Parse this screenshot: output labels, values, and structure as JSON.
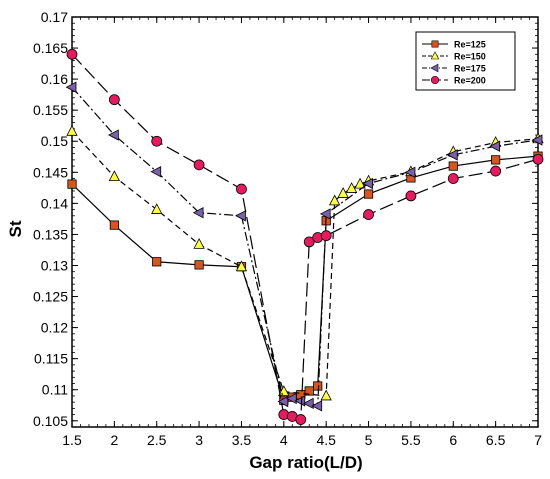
{
  "chart_data": {
    "type": "line",
    "title": "",
    "xlabel": "Gap ratio(L/D)",
    "ylabel": "St",
    "xlim": [
      1.5,
      7
    ],
    "ylim": [
      0.104,
      0.17
    ],
    "xticks": [
      1.5,
      2,
      2.5,
      3,
      3.5,
      4,
      4.5,
      5,
      5.5,
      6,
      6.5,
      7
    ],
    "xtick_labels": [
      "1.5",
      "2",
      "2.5",
      "3",
      "3.5",
      "4",
      "4.5",
      "5",
      "5.5",
      "6",
      "6.5",
      "7"
    ],
    "yticks": [
      0.105,
      0.11,
      0.115,
      0.12,
      0.125,
      0.13,
      0.135,
      0.14,
      0.145,
      0.15,
      0.155,
      0.16,
      0.165,
      0.17
    ],
    "ytick_labels": [
      "0.105",
      "0.11",
      "0.115",
      "0.12",
      "0.125",
      "0.13",
      "0.135",
      "0.14",
      "0.145",
      "0.15",
      "0.155",
      "0.16",
      "0.165",
      "0.17"
    ],
    "grid": false,
    "legend_position": "top-right",
    "series": [
      {
        "name": "Re=125",
        "line_style": "solid",
        "marker": "square",
        "color": "#d9541e",
        "x": [
          1.5,
          2.0,
          2.5,
          3.0,
          3.5,
          4.0,
          4.1,
          4.2,
          4.3,
          4.4,
          4.5,
          5.0,
          5.5,
          6.0,
          6.5,
          7.0
        ],
        "y": [
          0.1431,
          0.1365,
          0.1306,
          0.1301,
          0.1298,
          0.1083,
          0.1088,
          0.1092,
          0.1098,
          0.1106,
          0.1372,
          0.1415,
          0.1441,
          0.146,
          0.147,
          0.1476
        ]
      },
      {
        "name": "Re=150",
        "line_style": "dashed",
        "marker": "triangle",
        "color": "#ffff40",
        "x": [
          1.5,
          2.0,
          2.5,
          3.0,
          3.5,
          4.0,
          4.5,
          4.6,
          4.7,
          4.8,
          4.9,
          5.0,
          5.5,
          6.0,
          6.5,
          7.0
        ],
        "y": [
          0.1516,
          0.1443,
          0.139,
          0.1334,
          0.1298,
          0.1097,
          0.109,
          0.1404,
          0.1416,
          0.1424,
          0.1431,
          0.1436,
          0.1451,
          0.1483,
          0.1498,
          0.1504
        ]
      },
      {
        "name": "Re=175",
        "line_style": "dashdot",
        "marker": "triangle-left",
        "color": "#7a5faa",
        "x": [
          1.5,
          2.0,
          2.5,
          3.0,
          3.5,
          4.0,
          4.1,
          4.2,
          4.3,
          4.4,
          4.5,
          5.0,
          5.5,
          6.0,
          6.5,
          7.0
        ],
        "y": [
          0.1587,
          0.151,
          0.1451,
          0.1385,
          0.138,
          0.1081,
          0.1086,
          0.1082,
          0.1078,
          0.1074,
          0.1383,
          0.1432,
          0.145,
          0.1478,
          0.1492,
          0.1502
        ]
      },
      {
        "name": "Re=200",
        "line_style": "longdash",
        "marker": "circle",
        "color": "#e8195e",
        "x": [
          1.5,
          2.0,
          2.5,
          3.0,
          3.5,
          4.0,
          4.1,
          4.2,
          4.3,
          4.4,
          4.5,
          5.0,
          5.5,
          6.0,
          6.5,
          7.0
        ],
        "y": [
          0.164,
          0.1567,
          0.15,
          0.1462,
          0.1423,
          0.106,
          0.1057,
          0.1052,
          0.1338,
          0.1345,
          0.1348,
          0.1382,
          0.1412,
          0.144,
          0.1452,
          0.1471
        ]
      }
    ]
  }
}
